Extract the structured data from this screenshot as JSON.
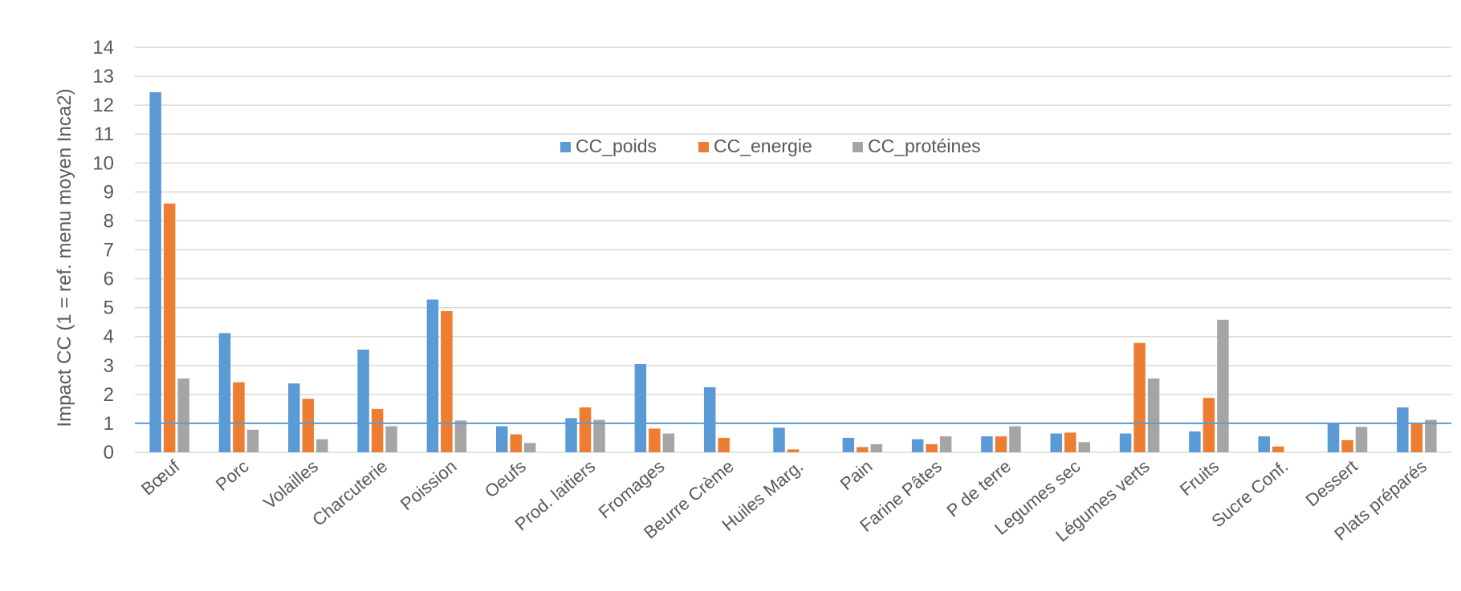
{
  "chart_data": {
    "type": "bar",
    "title": "",
    "xlabel": "",
    "ylabel": "Impact  CC (1 = ref. menu moyen Inca2)",
    "ylim": [
      0,
      14
    ],
    "yticks": [
      0,
      1,
      2,
      3,
      4,
      5,
      6,
      7,
      8,
      9,
      10,
      11,
      12,
      13,
      14
    ],
    "grid": true,
    "legend_position": "top-center",
    "reference_line": {
      "value": 1,
      "color": "#5b9bd5"
    },
    "categories": [
      "Bœuf",
      "Porc",
      "Volailles",
      "Charcuterie",
      "Poission",
      "Oeufs",
      "Prod. laitiers",
      "Fromages",
      "Beurre Crème",
      "Huiles Marg.",
      "Pain",
      "Farine Pâtes",
      "P de terre",
      "Legumes sec",
      "Légumes verts",
      "Fruits",
      "Sucre Conf.",
      "Dessert",
      "Plats préparés"
    ],
    "series": [
      {
        "name": "CC_poids",
        "color": "#5b9bd5",
        "values": [
          12.45,
          4.12,
          2.38,
          3.55,
          5.28,
          0.9,
          1.18,
          3.05,
          2.25,
          0.85,
          0.5,
          0.45,
          0.55,
          0.65,
          0.65,
          0.72,
          0.55,
          1.0,
          1.55
        ]
      },
      {
        "name": "CC_energie",
        "color": "#ed7d31",
        "values": [
          8.6,
          2.42,
          1.85,
          1.5,
          4.88,
          0.62,
          1.55,
          0.82,
          0.5,
          0.1,
          0.18,
          0.28,
          0.55,
          0.68,
          3.78,
          1.88,
          0.2,
          0.42,
          0.98
        ]
      },
      {
        "name": "CC_protéines",
        "color": "#a5a5a5",
        "values": [
          2.55,
          0.78,
          0.45,
          0.9,
          1.1,
          0.32,
          1.12,
          0.65,
          0,
          0,
          0.28,
          0.55,
          0.9,
          0.35,
          2.55,
          4.58,
          0,
          0.88,
          1.12
        ]
      }
    ]
  }
}
